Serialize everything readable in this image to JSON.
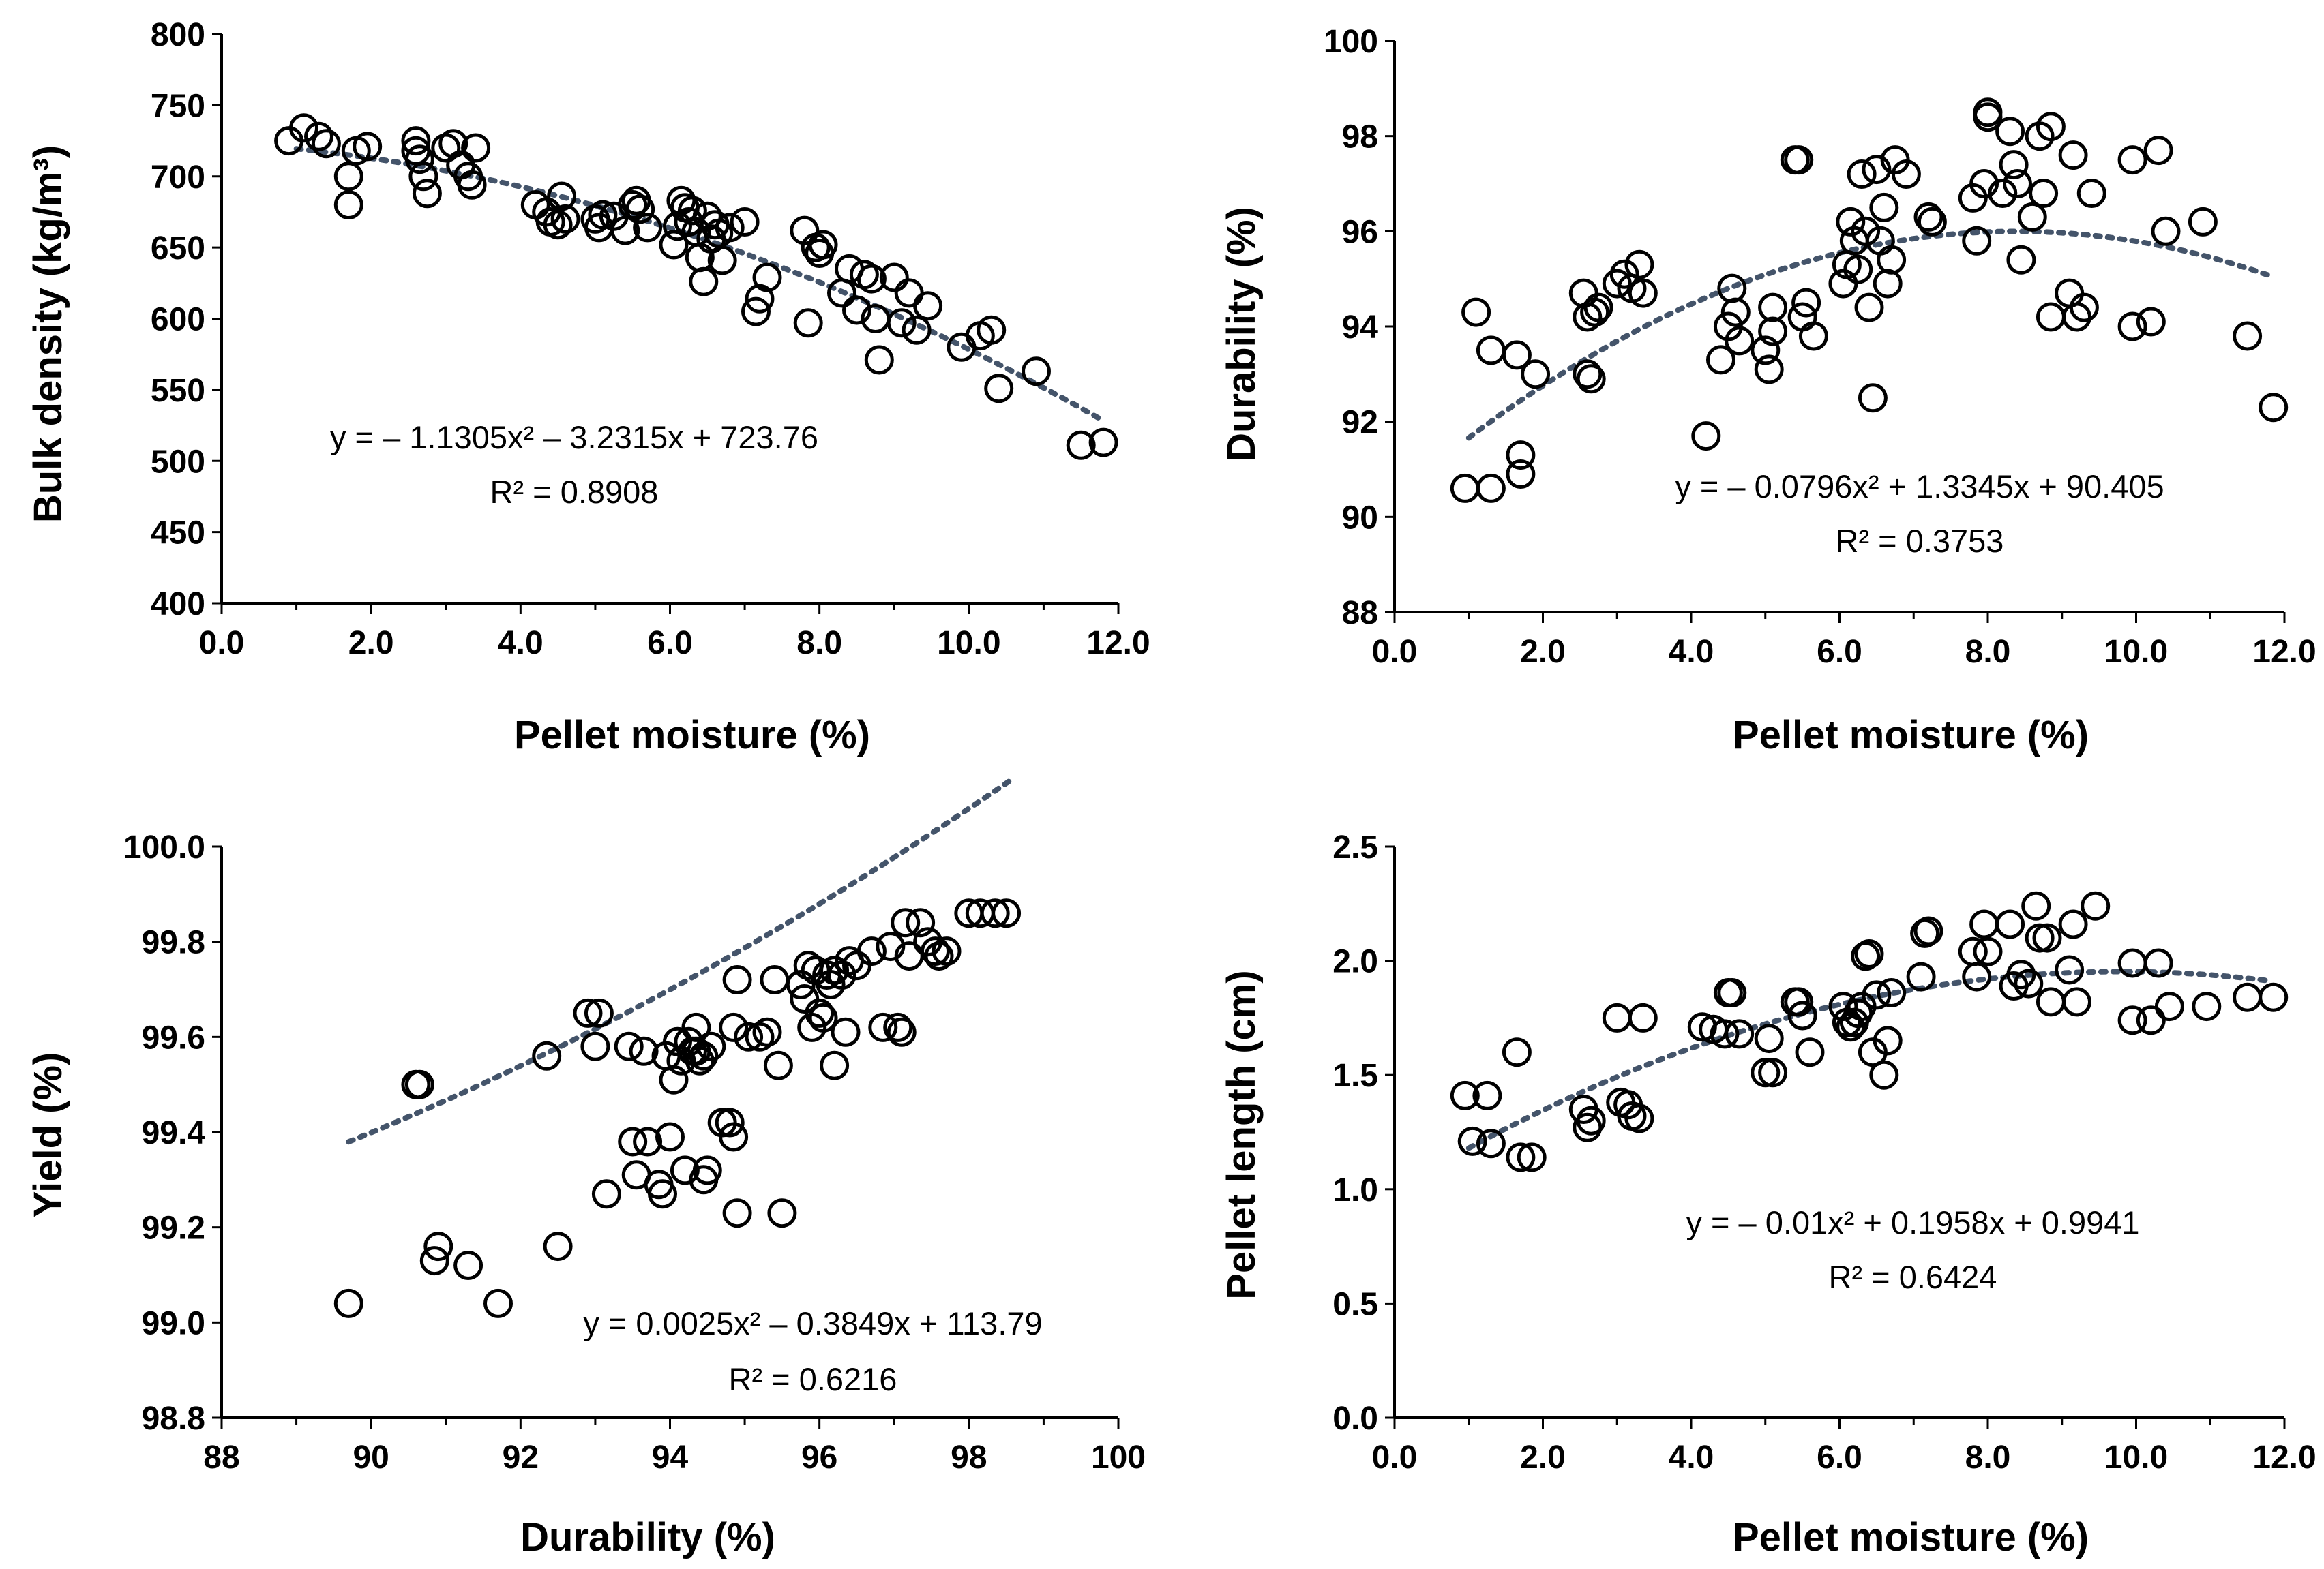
{
  "chart_data": [
    {
      "type": "scatter",
      "xlabel": "Pellet moisture (%)",
      "ylabel": "Bulk density (kg/m³)",
      "xlim": [
        0,
        12
      ],
      "ylim": [
        400,
        800
      ],
      "xticks": [
        "0.0",
        "2.0",
        "4.0",
        "6.0",
        "8.0",
        "10.0",
        "12.0"
      ],
      "yticks": [
        "400",
        "450",
        "500",
        "550",
        "600",
        "650",
        "700",
        "750",
        "800"
      ],
      "trendline": {
        "kind": "polynomial",
        "a": -1.1305,
        "b": -3.2315,
        "c": 723.76,
        "x_range": [
          1.0,
          11.8
        ]
      },
      "equation": "y = – 1.1305x² – 3.2315x + 723.76",
      "r2": "R² = 0.8908",
      "points": [
        [
          0.9,
          725
        ],
        [
          1.1,
          734
        ],
        [
          1.3,
          728
        ],
        [
          1.4,
          723
        ],
        [
          1.7,
          700
        ],
        [
          1.7,
          680
        ],
        [
          1.8,
          718
        ],
        [
          1.95,
          721
        ],
        [
          2.6,
          725
        ],
        [
          2.6,
          718
        ],
        [
          2.65,
          712
        ],
        [
          2.7,
          700
        ],
        [
          2.75,
          688
        ],
        [
          3.0,
          720
        ],
        [
          3.1,
          723
        ],
        [
          3.2,
          708
        ],
        [
          3.3,
          700
        ],
        [
          3.35,
          694
        ],
        [
          3.4,
          720
        ],
        [
          4.2,
          680
        ],
        [
          4.35,
          675
        ],
        [
          4.4,
          668
        ],
        [
          4.5,
          666
        ],
        [
          4.55,
          686
        ],
        [
          4.6,
          670
        ],
        [
          5.0,
          670
        ],
        [
          5.05,
          664
        ],
        [
          5.1,
          673
        ],
        [
          5.25,
          672
        ],
        [
          5.4,
          662
        ],
        [
          5.5,
          680
        ],
        [
          5.55,
          683
        ],
        [
          5.6,
          677
        ],
        [
          5.7,
          664
        ],
        [
          6.05,
          652
        ],
        [
          6.1,
          665
        ],
        [
          6.15,
          683
        ],
        [
          6.2,
          678
        ],
        [
          6.25,
          668
        ],
        [
          6.3,
          676
        ],
        [
          6.35,
          661
        ],
        [
          6.4,
          643
        ],
        [
          6.45,
          626
        ],
        [
          6.5,
          672
        ],
        [
          6.55,
          656
        ],
        [
          6.6,
          666
        ],
        [
          6.65,
          660
        ],
        [
          6.7,
          641
        ],
        [
          6.8,
          664
        ],
        [
          7.0,
          668
        ],
        [
          7.15,
          605
        ],
        [
          7.2,
          614
        ],
        [
          7.3,
          629
        ],
        [
          7.8,
          662
        ],
        [
          7.85,
          597
        ],
        [
          7.95,
          650
        ],
        [
          8.0,
          646
        ],
        [
          8.05,
          652
        ],
        [
          8.3,
          618
        ],
        [
          8.4,
          635
        ],
        [
          8.5,
          606
        ],
        [
          8.6,
          631
        ],
        [
          8.7,
          628
        ],
        [
          8.75,
          600
        ],
        [
          8.8,
          571
        ],
        [
          9.0,
          629
        ],
        [
          9.1,
          597
        ],
        [
          9.2,
          618
        ],
        [
          9.3,
          592
        ],
        [
          9.45,
          609
        ],
        [
          9.9,
          580
        ],
        [
          10.15,
          588
        ],
        [
          10.3,
          592
        ],
        [
          10.4,
          551
        ],
        [
          10.9,
          563
        ],
        [
          11.5,
          511
        ],
        [
          11.8,
          513
        ]
      ]
    },
    {
      "type": "scatter",
      "xlabel": "Pellet moisture (%)",
      "ylabel": "Durability (%)",
      "xlim": [
        0,
        12
      ],
      "ylim": [
        88,
        100
      ],
      "xticks": [
        "0.0",
        "2.0",
        "4.0",
        "6.0",
        "8.0",
        "10.0",
        "12.0"
      ],
      "yticks": [
        "88",
        "90",
        "92",
        "94",
        "96",
        "98",
        "100"
      ],
      "trendline": {
        "kind": "polynomial",
        "a": -0.0796,
        "b": 1.3345,
        "c": 90.405,
        "x_range": [
          1.0,
          11.8
        ]
      },
      "equation": "y = – 0.0796x² + 1.3345x + 90.405",
      "r2": "R² = 0.3753",
      "points": [
        [
          0.95,
          90.6
        ],
        [
          1.1,
          94.3
        ],
        [
          1.3,
          90.6
        ],
        [
          1.3,
          93.5
        ],
        [
          1.65,
          93.4
        ],
        [
          1.7,
          90.9
        ],
        [
          1.7,
          91.3
        ],
        [
          1.9,
          93.0
        ],
        [
          2.55,
          94.7
        ],
        [
          2.6,
          94.2
        ],
        [
          2.6,
          93.0
        ],
        [
          2.65,
          92.9
        ],
        [
          2.7,
          94.3
        ],
        [
          2.75,
          94.4
        ],
        [
          3.0,
          94.9
        ],
        [
          3.1,
          95.1
        ],
        [
          3.2,
          94.8
        ],
        [
          3.3,
          95.3
        ],
        [
          3.35,
          94.7
        ],
        [
          4.2,
          91.7
        ],
        [
          4.4,
          93.3
        ],
        [
          4.5,
          94.0
        ],
        [
          4.55,
          94.8
        ],
        [
          4.6,
          94.3
        ],
        [
          4.65,
          93.7
        ],
        [
          5.0,
          93.5
        ],
        [
          5.05,
          93.1
        ],
        [
          5.1,
          93.9
        ],
        [
          5.1,
          94.4
        ],
        [
          5.4,
          97.5
        ],
        [
          5.45,
          97.5
        ],
        [
          5.5,
          94.2
        ],
        [
          5.55,
          94.5
        ],
        [
          5.65,
          93.8
        ],
        [
          6.05,
          94.9
        ],
        [
          6.1,
          95.3
        ],
        [
          6.15,
          96.2
        ],
        [
          6.2,
          95.8
        ],
        [
          6.25,
          95.2
        ],
        [
          6.3,
          97.2
        ],
        [
          6.35,
          96.0
        ],
        [
          6.4,
          94.4
        ],
        [
          6.45,
          92.5
        ],
        [
          6.5,
          97.3
        ],
        [
          6.55,
          95.8
        ],
        [
          6.6,
          96.5
        ],
        [
          6.65,
          94.9
        ],
        [
          6.7,
          95.4
        ],
        [
          6.75,
          97.5
        ],
        [
          6.9,
          97.2
        ],
        [
          7.2,
          96.3
        ],
        [
          7.25,
          96.2
        ],
        [
          7.8,
          96.7
        ],
        [
          7.85,
          95.8
        ],
        [
          7.95,
          97.0
        ],
        [
          8.0,
          98.4
        ],
        [
          8.0,
          98.5
        ],
        [
          8.2,
          96.8
        ],
        [
          8.3,
          98.1
        ],
        [
          8.35,
          97.4
        ],
        [
          8.4,
          97.0
        ],
        [
          8.45,
          95.4
        ],
        [
          8.6,
          96.3
        ],
        [
          8.7,
          98.0
        ],
        [
          8.75,
          96.8
        ],
        [
          8.85,
          98.2
        ],
        [
          8.85,
          94.2
        ],
        [
          9.1,
          94.7
        ],
        [
          9.15,
          97.6
        ],
        [
          9.2,
          94.2
        ],
        [
          9.3,
          94.4
        ],
        [
          9.4,
          96.8
        ],
        [
          9.95,
          97.5
        ],
        [
          9.95,
          94.0
        ],
        [
          10.2,
          94.1
        ],
        [
          10.3,
          97.7
        ],
        [
          10.4,
          96.0
        ],
        [
          10.9,
          96.2
        ],
        [
          11.5,
          93.8
        ],
        [
          11.85,
          92.3
        ]
      ]
    },
    {
      "type": "scatter",
      "xlabel": "Durability (%)",
      "ylabel": "Yield (%)",
      "xlim": [
        88,
        100
      ],
      "ylim": [
        98.8,
        100.0
      ],
      "xticks": [
        "88",
        "90",
        "92",
        "94",
        "96",
        "98",
        "100"
      ],
      "yticks": [
        "98.8",
        "99.0",
        "99.2",
        "99.4",
        "99.6",
        "99.8",
        "100.0"
      ],
      "trendline": {
        "kind": "polynomial",
        "a": 0.0025,
        "b": -0.3849,
        "c": 113.79,
        "x_range": [
          89.7,
          98.6
        ]
      },
      "equation": "y = 0.0025x² – 0.3849x + 113.79",
      "r2": "R² = 0.6216",
      "points": [
        [
          89.7,
          99.04
        ],
        [
          90.6,
          99.5
        ],
        [
          90.65,
          99.5
        ],
        [
          90.9,
          99.16
        ],
        [
          90.85,
          99.13
        ],
        [
          91.3,
          99.12
        ],
        [
          91.7,
          99.04
        ],
        [
          92.35,
          99.56
        ],
        [
          92.5,
          99.16
        ],
        [
          92.9,
          99.65
        ],
        [
          93.0,
          99.58
        ],
        [
          93.05,
          99.65
        ],
        [
          93.15,
          99.27
        ],
        [
          93.45,
          99.58
        ],
        [
          93.5,
          99.38
        ],
        [
          93.55,
          99.31
        ],
        [
          93.65,
          99.57
        ],
        [
          93.7,
          99.38
        ],
        [
          93.85,
          99.29
        ],
        [
          93.9,
          99.27
        ],
        [
          93.95,
          99.56
        ],
        [
          94.0,
          99.39
        ],
        [
          94.05,
          99.51
        ],
        [
          94.1,
          99.59
        ],
        [
          94.15,
          99.55
        ],
        [
          94.2,
          99.32
        ],
        [
          94.25,
          99.59
        ],
        [
          94.3,
          99.57
        ],
        [
          94.35,
          99.57
        ],
        [
          94.35,
          99.62
        ],
        [
          94.4,
          99.55
        ],
        [
          94.45,
          99.56
        ],
        [
          94.45,
          99.3
        ],
        [
          94.5,
          99.32
        ],
        [
          94.55,
          99.58
        ],
        [
          94.7,
          99.42
        ],
        [
          94.8,
          99.42
        ],
        [
          94.85,
          99.62
        ],
        [
          94.85,
          99.39
        ],
        [
          94.9,
          99.23
        ],
        [
          94.9,
          99.72
        ],
        [
          95.05,
          99.6
        ],
        [
          95.2,
          99.6
        ],
        [
          95.3,
          99.61
        ],
        [
          95.4,
          99.72
        ],
        [
          95.45,
          99.54
        ],
        [
          95.5,
          99.23
        ],
        [
          95.75,
          99.71
        ],
        [
          95.8,
          99.68
        ],
        [
          95.85,
          99.75
        ],
        [
          95.9,
          99.62
        ],
        [
          95.95,
          99.74
        ],
        [
          96.0,
          99.65
        ],
        [
          96.05,
          99.64
        ],
        [
          96.1,
          99.73
        ],
        [
          96.15,
          99.71
        ],
        [
          96.2,
          99.74
        ],
        [
          96.2,
          99.54
        ],
        [
          96.3,
          99.73
        ],
        [
          96.35,
          99.61
        ],
        [
          96.4,
          99.76
        ],
        [
          96.5,
          99.75
        ],
        [
          96.7,
          99.78
        ],
        [
          96.85,
          99.62
        ],
        [
          96.95,
          99.79
        ],
        [
          97.05,
          99.62
        ],
        [
          97.1,
          99.61
        ],
        [
          97.15,
          99.84
        ],
        [
          97.2,
          99.77
        ],
        [
          97.35,
          99.84
        ],
        [
          97.45,
          99.8
        ],
        [
          97.55,
          99.78
        ],
        [
          97.6,
          99.77
        ],
        [
          97.7,
          99.78
        ],
        [
          98.0,
          99.86
        ],
        [
          98.15,
          99.86
        ],
        [
          98.35,
          99.86
        ],
        [
          98.5,
          99.86
        ]
      ]
    },
    {
      "type": "scatter",
      "xlabel": "Pellet moisture (%)",
      "ylabel": "Pellet length (cm)",
      "xlim": [
        0,
        12
      ],
      "ylim": [
        0,
        2.5
      ],
      "xticks": [
        "0.0",
        "2.0",
        "4.0",
        "6.0",
        "8.0",
        "10.0",
        "12.0"
      ],
      "yticks": [
        "0.0",
        "0.5",
        "1.0",
        "1.5",
        "2.0",
        "2.5"
      ],
      "trendline": {
        "kind": "polynomial",
        "a": -0.01,
        "b": 0.1958,
        "c": 0.9941,
        "x_range": [
          1.0,
          11.8
        ]
      },
      "equation": "y = – 0.01x² + 0.1958x + 0.9941",
      "r2": "R² = 0.6424",
      "points": [
        [
          0.95,
          1.41
        ],
        [
          1.05,
          1.21
        ],
        [
          1.25,
          1.41
        ],
        [
          1.3,
          1.2
        ],
        [
          1.65,
          1.6
        ],
        [
          1.7,
          1.14
        ],
        [
          1.85,
          1.14
        ],
        [
          2.55,
          1.35
        ],
        [
          2.6,
          1.27
        ],
        [
          2.65,
          1.3
        ],
        [
          3.0,
          1.75
        ],
        [
          3.05,
          1.38
        ],
        [
          3.15,
          1.37
        ],
        [
          3.2,
          1.32
        ],
        [
          3.3,
          1.31
        ],
        [
          3.35,
          1.75
        ],
        [
          4.15,
          1.71
        ],
        [
          4.3,
          1.7
        ],
        [
          4.45,
          1.68
        ],
        [
          4.5,
          1.86
        ],
        [
          4.55,
          1.86
        ],
        [
          4.65,
          1.68
        ],
        [
          5.0,
          1.51
        ],
        [
          5.05,
          1.66
        ],
        [
          5.1,
          1.51
        ],
        [
          5.4,
          1.82
        ],
        [
          5.45,
          1.82
        ],
        [
          5.5,
          1.76
        ],
        [
          5.6,
          1.6
        ],
        [
          6.05,
          1.8
        ],
        [
          6.1,
          1.73
        ],
        [
          6.15,
          1.71
        ],
        [
          6.2,
          1.73
        ],
        [
          6.25,
          1.77
        ],
        [
          6.3,
          1.8
        ],
        [
          6.35,
          2.02
        ],
        [
          6.4,
          2.03
        ],
        [
          6.45,
          1.6
        ],
        [
          6.5,
          1.85
        ],
        [
          6.6,
          1.5
        ],
        [
          6.65,
          1.65
        ],
        [
          6.7,
          1.86
        ],
        [
          7.1,
          1.93
        ],
        [
          7.15,
          2.12
        ],
        [
          7.2,
          2.13
        ],
        [
          7.8,
          2.04
        ],
        [
          7.85,
          1.93
        ],
        [
          7.95,
          2.16
        ],
        [
          8.0,
          2.04
        ],
        [
          8.3,
          2.16
        ],
        [
          8.35,
          1.89
        ],
        [
          8.45,
          1.94
        ],
        [
          8.55,
          1.9
        ],
        [
          8.65,
          2.24
        ],
        [
          8.7,
          2.1
        ],
        [
          8.8,
          2.1
        ],
        [
          8.85,
          1.82
        ],
        [
          9.1,
          1.96
        ],
        [
          9.15,
          2.16
        ],
        [
          9.2,
          1.82
        ],
        [
          9.45,
          2.24
        ],
        [
          9.95,
          1.99
        ],
        [
          9.95,
          1.74
        ],
        [
          10.2,
          1.74
        ],
        [
          10.3,
          1.99
        ],
        [
          10.45,
          1.8
        ],
        [
          10.95,
          1.8
        ],
        [
          11.5,
          1.84
        ],
        [
          11.85,
          1.84
        ]
      ]
    }
  ]
}
